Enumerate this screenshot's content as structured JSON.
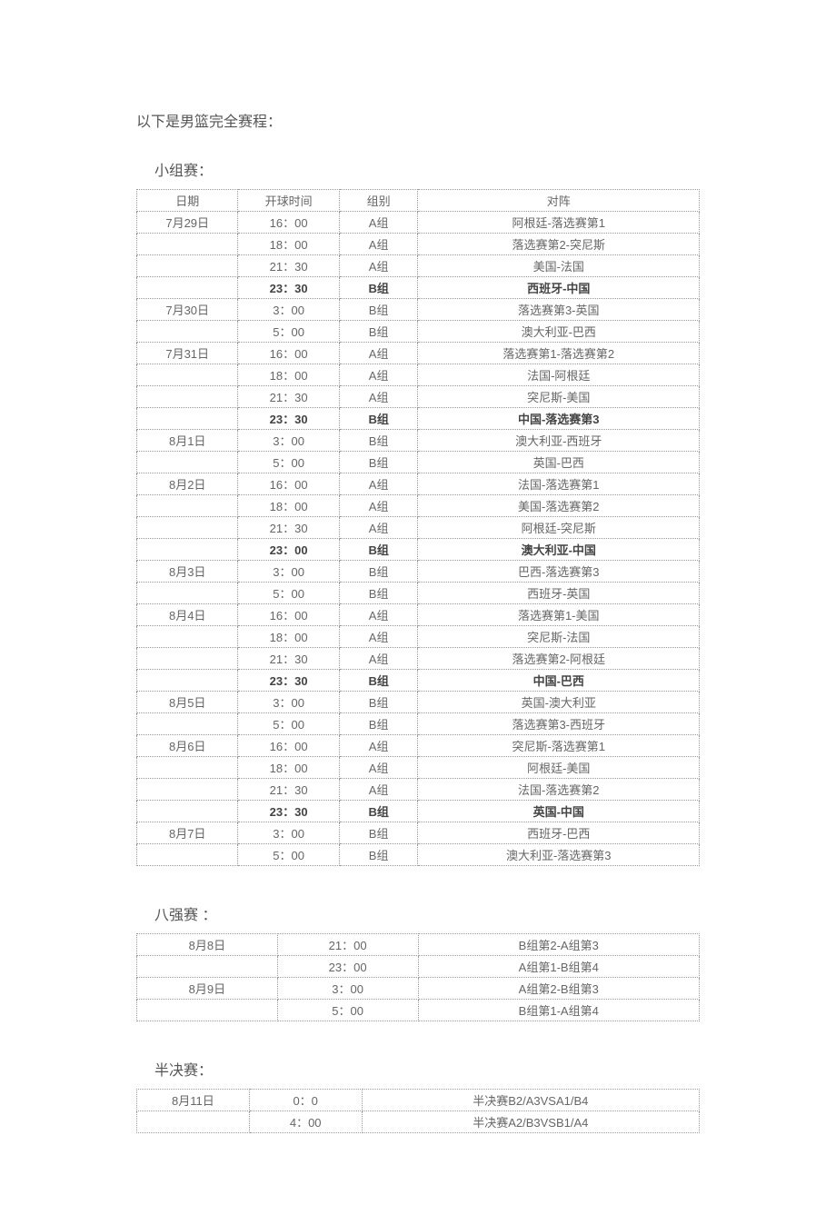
{
  "pageTitle": "以下是男篮完全赛程：",
  "groupStage": {
    "title": "小组赛：",
    "headers": [
      "日期",
      "开球时间",
      "组别",
      "对阵"
    ],
    "rows": [
      {
        "date": "7月29日",
        "time": "16：00",
        "group": "A组",
        "match": "阿根廷-落选赛第1",
        "bold": false
      },
      {
        "date": "",
        "time": "18：00",
        "group": "A组",
        "match": "落选赛第2-突尼斯",
        "bold": false
      },
      {
        "date": "",
        "time": "21：30",
        "group": "A组",
        "match": "美国-法国",
        "bold": false
      },
      {
        "date": "",
        "time": "23：30",
        "group": "B组",
        "match": "西班牙-中国",
        "bold": true
      },
      {
        "date": "7月30日",
        "time": "3：00",
        "group": "B组",
        "match": "落选赛第3-英国",
        "bold": false
      },
      {
        "date": "",
        "time": "5：00",
        "group": "B组",
        "match": "澳大利亚-巴西",
        "bold": false
      },
      {
        "date": "7月31日",
        "time": "16：00",
        "group": "A组",
        "match": "落选赛第1-落选赛第2",
        "bold": false
      },
      {
        "date": "",
        "time": "18：00",
        "group": "A组",
        "match": "法国-阿根廷",
        "bold": false
      },
      {
        "date": "",
        "time": "21：30",
        "group": "A组",
        "match": "突尼斯-美国",
        "bold": false
      },
      {
        "date": "",
        "time": "23：30",
        "group": "B组",
        "match": "中国-落选赛第3",
        "bold": true
      },
      {
        "date": "8月1日",
        "time": "3：00",
        "group": "B组",
        "match": "澳大利亚-西班牙",
        "bold": false
      },
      {
        "date": "",
        "time": "5：00",
        "group": "B组",
        "match": "英国-巴西",
        "bold": false
      },
      {
        "date": "8月2日",
        "time": "16：00",
        "group": "A组",
        "match": "法国-落选赛第1",
        "bold": false
      },
      {
        "date": "",
        "time": "18：00",
        "group": "A组",
        "match": "美国-落选赛第2",
        "bold": false
      },
      {
        "date": "",
        "time": "21：30",
        "group": "A组",
        "match": "阿根廷-突尼斯",
        "bold": false
      },
      {
        "date": "",
        "time": "23：00",
        "group": "B组",
        "match": "澳大利亚-中国",
        "bold": true
      },
      {
        "date": "8月3日",
        "time": "3：00",
        "group": "B组",
        "match": "巴西-落选赛第3",
        "bold": false
      },
      {
        "date": "",
        "time": "5：00",
        "group": "B组",
        "match": "西班牙-英国",
        "bold": false
      },
      {
        "date": "8月4日",
        "time": "16：00",
        "group": "A组",
        "match": "落选赛第1-美国",
        "bold": false
      },
      {
        "date": "",
        "time": "18：00",
        "group": "A组",
        "match": "突尼斯-法国",
        "bold": false
      },
      {
        "date": "",
        "time": "21：30",
        "group": "A组",
        "match": "落选赛第2-阿根廷",
        "bold": false
      },
      {
        "date": "",
        "time": "23：30",
        "group": "B组",
        "match": "中国-巴西",
        "bold": true
      },
      {
        "date": "8月5日",
        "time": "3：00",
        "group": "B组",
        "match": "英国-澳大利亚",
        "bold": false
      },
      {
        "date": "",
        "time": "5：00",
        "group": "B组",
        "match": "落选赛第3-西班牙",
        "bold": false
      },
      {
        "date": "8月6日",
        "time": "16：00",
        "group": "A组",
        "match": "突尼斯-落选赛第1",
        "bold": false
      },
      {
        "date": "",
        "time": "18：00",
        "group": "A组",
        "match": "阿根廷-美国",
        "bold": false
      },
      {
        "date": "",
        "time": "21：30",
        "group": "A组",
        "match": "法国-落选赛第2",
        "bold": false
      },
      {
        "date": "",
        "time": "23：30",
        "group": "B组",
        "match": "英国-中国",
        "bold": true
      },
      {
        "date": "8月7日",
        "time": "3：00",
        "group": "B组",
        "match": "西班牙-巴西",
        "bold": false
      },
      {
        "date": "",
        "time": "5：00",
        "group": "B组",
        "match": "澳大利亚-落选赛第3",
        "bold": false
      }
    ]
  },
  "quarterFinals": {
    "title": "八强赛 ：",
    "rows": [
      {
        "date": "8月8日",
        "time": "21：00",
        "match": "B组第2-A组第3"
      },
      {
        "date": "",
        "time": "23：00",
        "match": "A组第1-B组第4"
      },
      {
        "date": "8月9日",
        "time": "3：00",
        "match": "A组第2-B组第3"
      },
      {
        "date": "",
        "time": "5：00",
        "match": "B组第1-A组第4"
      }
    ]
  },
  "semiFinals": {
    "title": "半决赛：",
    "rows": [
      {
        "date": "8月11日",
        "time": "0：0",
        "match": "半决赛B2/A3VSA1/B4"
      },
      {
        "date": "",
        "time": "4：00",
        "match": "半决赛A2/B3VSB1/A4"
      }
    ]
  }
}
